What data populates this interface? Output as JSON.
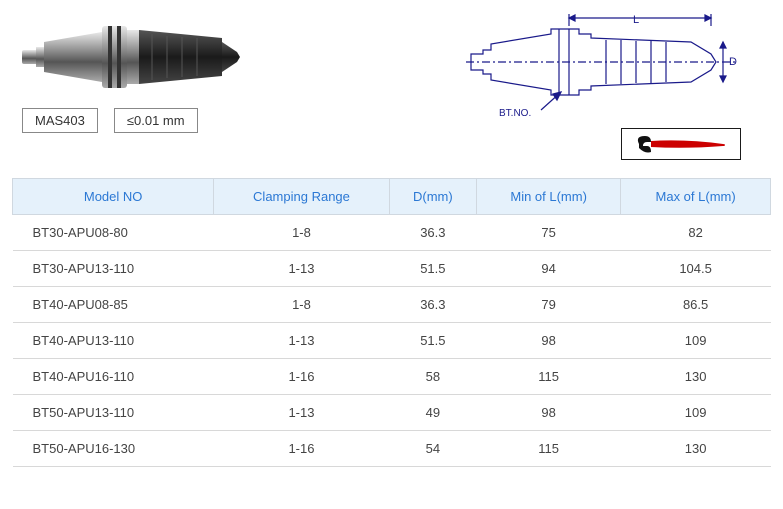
{
  "badges": {
    "standard": "MAS403",
    "tolerance": "≤0.01 mm"
  },
  "diagram_labels": {
    "length": "L",
    "diameter": "D",
    "bt_no": "BT.NO."
  },
  "table": {
    "columns": [
      "Model NO",
      "Clamping Range",
      "D(mm)",
      "Min of L(mm)",
      "Max of L(mm)"
    ],
    "rows": [
      [
        "BT30-APU08-80",
        "1-8",
        "36.3",
        "75",
        "82"
      ],
      [
        "BT30-APU13-110",
        "1-13",
        "51.5",
        "94",
        "104.5"
      ],
      [
        "BT40-APU08-85",
        "1-8",
        "36.3",
        "79",
        "86.5"
      ],
      [
        "BT40-APU13-110",
        "1-13",
        "51.5",
        "98",
        "109"
      ],
      [
        "BT40-APU16-110",
        "1-16",
        "58",
        "115",
        "130"
      ],
      [
        "BT50-APU13-110",
        "1-13",
        "49",
        "98",
        "109"
      ],
      [
        "BT50-APU16-130",
        "1-16",
        "54",
        "115",
        "130"
      ]
    ]
  },
  "colors": {
    "header_bg": "#e5f1fb",
    "header_text": "#2b78d4",
    "border": "#d0d8e0",
    "row_border": "#d8d8d8",
    "text": "#444444",
    "diagram_line": "#1a1a8a",
    "wrench_handle": "#cc0000"
  }
}
